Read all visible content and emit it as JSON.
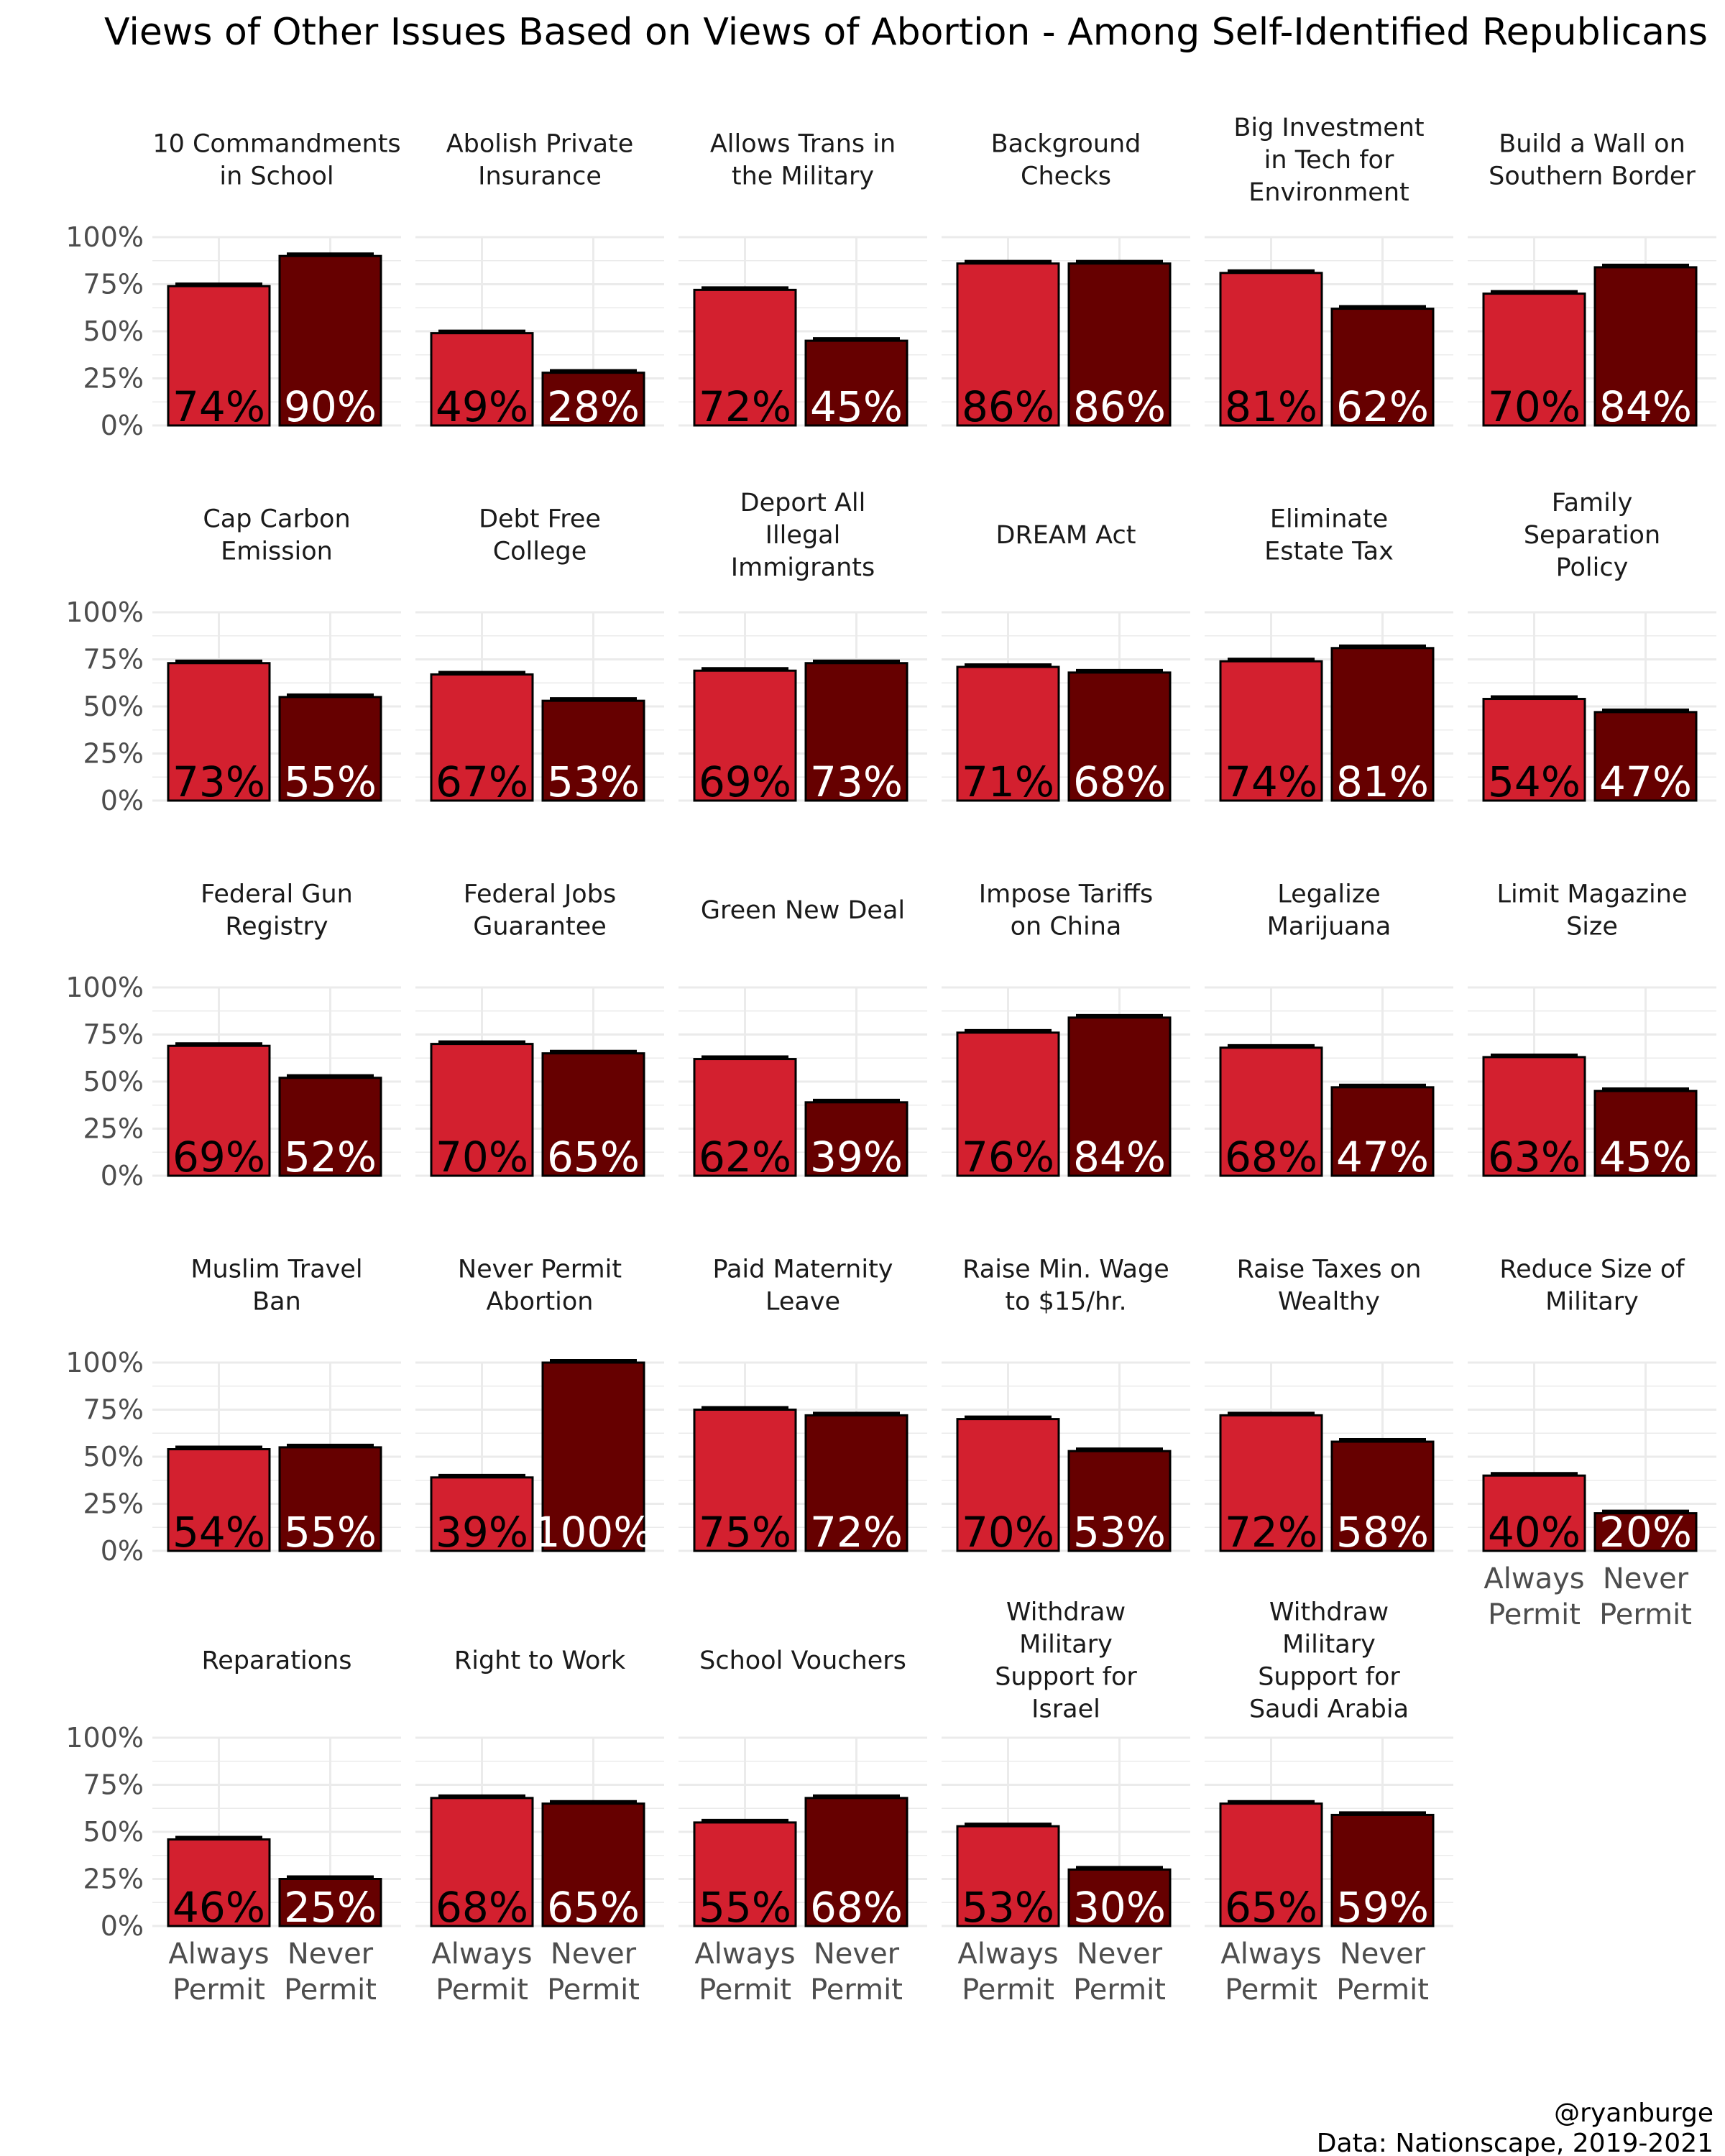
{
  "chart_data": {
    "type": "bar",
    "title": "Views of Other Issues Based on Views of Abortion - Among Self-Identified Republicans",
    "caption": [
      "@ryanburge",
      "Data: Nationscape, 2019-2021"
    ],
    "categories": [
      "Always Permit",
      "Never Permit"
    ],
    "category_lines": [
      [
        "Always",
        "Permit"
      ],
      [
        "Never",
        "Permit"
      ]
    ],
    "y_ticks": [
      "0%",
      "25%",
      "50%",
      "75%",
      "100%"
    ],
    "ylim": [
      0,
      100
    ],
    "grid": true,
    "colors": {
      "Always Permit": "#d3202f",
      "Never Permit": "#660000"
    },
    "panels": [
      {
        "title": [
          "10 Commandments",
          "in School"
        ],
        "values": [
          74,
          90
        ],
        "labels": [
          "74%",
          "90%"
        ]
      },
      {
        "title": [
          "Abolish Private",
          "Insurance"
        ],
        "values": [
          49,
          28
        ],
        "labels": [
          "49%",
          "28%"
        ]
      },
      {
        "title": [
          "Allows Trans in",
          "the Military"
        ],
        "values": [
          72,
          45
        ],
        "labels": [
          "72%",
          "45%"
        ]
      },
      {
        "title": [
          "Background",
          "Checks"
        ],
        "values": [
          86,
          86
        ],
        "labels": [
          "86%",
          "86%"
        ]
      },
      {
        "title": [
          "Big Investment",
          "in Tech for",
          "Environment"
        ],
        "values": [
          81,
          62
        ],
        "labels": [
          "81%",
          "62%"
        ]
      },
      {
        "title": [
          "Build a Wall on",
          "Southern Border"
        ],
        "values": [
          70,
          84
        ],
        "labels": [
          "70%",
          "84%"
        ]
      },
      {
        "title": [
          "Cap Carbon",
          "Emission"
        ],
        "values": [
          73,
          55
        ],
        "labels": [
          "73%",
          "55%"
        ]
      },
      {
        "title": [
          "Debt Free",
          "College"
        ],
        "values": [
          67,
          53
        ],
        "labels": [
          "67%",
          "53%"
        ]
      },
      {
        "title": [
          "Deport All",
          "Illegal",
          "Immigrants"
        ],
        "values": [
          69,
          73
        ],
        "labels": [
          "69%",
          "73%"
        ]
      },
      {
        "title": [
          "DREAM Act"
        ],
        "values": [
          71,
          68
        ],
        "labels": [
          "71%",
          "68%"
        ]
      },
      {
        "title": [
          "Eliminate",
          "Estate Tax"
        ],
        "values": [
          74,
          81
        ],
        "labels": [
          "74%",
          "81%"
        ]
      },
      {
        "title": [
          "Family",
          "Separation",
          "Policy"
        ],
        "values": [
          54,
          47
        ],
        "labels": [
          "54%",
          "47%"
        ]
      },
      {
        "title": [
          "Federal Gun",
          "Registry"
        ],
        "values": [
          69,
          52
        ],
        "labels": [
          "69%",
          "52%"
        ]
      },
      {
        "title": [
          "Federal Jobs",
          "Guarantee"
        ],
        "values": [
          70,
          65
        ],
        "labels": [
          "70%",
          "65%"
        ]
      },
      {
        "title": [
          "Green New Deal"
        ],
        "values": [
          62,
          39
        ],
        "labels": [
          "62%",
          "39%"
        ]
      },
      {
        "title": [
          "Impose Tariffs",
          "on China"
        ],
        "values": [
          76,
          84
        ],
        "labels": [
          "76%",
          "84%"
        ]
      },
      {
        "title": [
          "Legalize",
          "Marijuana"
        ],
        "values": [
          68,
          47
        ],
        "labels": [
          "68%",
          "47%"
        ]
      },
      {
        "title": [
          "Limit Magazine",
          "Size"
        ],
        "values": [
          63,
          45
        ],
        "labels": [
          "63%",
          "45%"
        ]
      },
      {
        "title": [
          "Muslim Travel",
          "Ban"
        ],
        "values": [
          54,
          55
        ],
        "labels": [
          "54%",
          "55%"
        ]
      },
      {
        "title": [
          "Never Permit",
          "Abortion"
        ],
        "values": [
          39,
          100
        ],
        "labels": [
          "39%",
          "100%"
        ]
      },
      {
        "title": [
          "Paid Maternity",
          "Leave"
        ],
        "values": [
          75,
          72
        ],
        "labels": [
          "75%",
          "72%"
        ]
      },
      {
        "title": [
          "Raise Min. Wage",
          "to $15/hr."
        ],
        "values": [
          70,
          53
        ],
        "labels": [
          "70%",
          "53%"
        ]
      },
      {
        "title": [
          "Raise Taxes on",
          "Wealthy"
        ],
        "values": [
          72,
          58
        ],
        "labels": [
          "72%",
          "58%"
        ]
      },
      {
        "title": [
          "Reduce Size of",
          "Military"
        ],
        "values": [
          40,
          20
        ],
        "labels": [
          "40%",
          "20%"
        ]
      },
      {
        "title": [
          "Reparations"
        ],
        "values": [
          46,
          25
        ],
        "labels": [
          "46%",
          "25%"
        ]
      },
      {
        "title": [
          "Right to Work"
        ],
        "values": [
          68,
          65
        ],
        "labels": [
          "68%",
          "65%"
        ]
      },
      {
        "title": [
          "School Vouchers"
        ],
        "values": [
          55,
          68
        ],
        "labels": [
          "55%",
          "68%"
        ]
      },
      {
        "title": [
          "Withdraw",
          "Military",
          "Support for",
          "Israel"
        ],
        "values": [
          53,
          30
        ],
        "labels": [
          "53%",
          "30%"
        ]
      },
      {
        "title": [
          "Withdraw",
          "Military",
          "Support for",
          "Saudi Arabia"
        ],
        "values": [
          65,
          59
        ],
        "labels": [
          "65%",
          "59%"
        ]
      }
    ]
  }
}
